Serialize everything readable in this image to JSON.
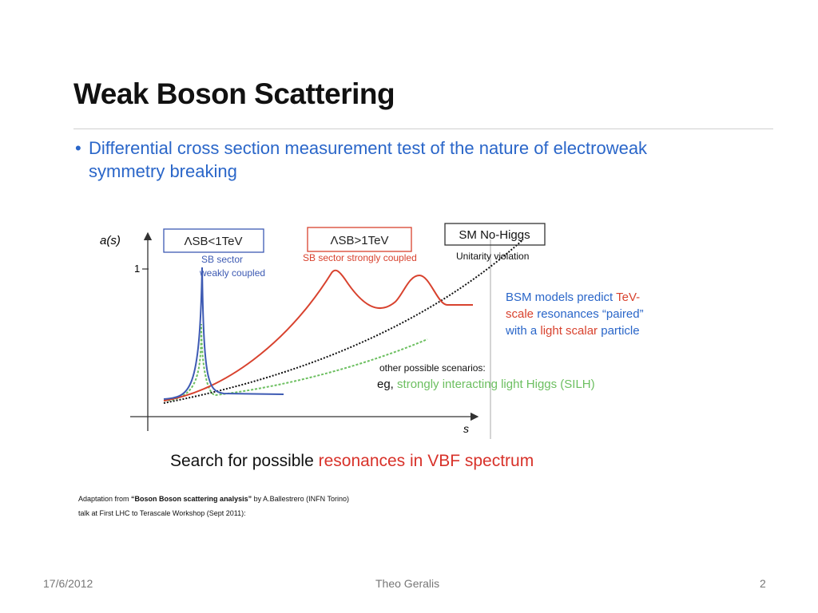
{
  "slide": {
    "title": "Weak Boson Scattering",
    "bullet_marker": "•",
    "bullet_line1": "Differential cross section measurement test of the nature of electroweak",
    "bullet_line2": "symmetry breaking"
  },
  "diagram": {
    "y_axis_label": "a(s)",
    "y_tick_label": "1",
    "x_axis_label": "s",
    "box_weak": "ΛSB<1TeV",
    "box_weak_sub_line1": "SB sector",
    "box_weak_sub_line2": "weakly coupled",
    "box_strong": "ΛSB>1TeV",
    "box_strong_sub": "SB sector strongly coupled",
    "box_smnohiggs": "SM No-Higgs",
    "unitarity_label": "Unitarity violation",
    "bsm_line1_part1": "BSM models predict ",
    "bsm_line1_part2": "TeV-",
    "bsm_line2_part1": "scale",
    "bsm_line2_part2": " resonances “paired”",
    "bsm_line3_part1": "with a ",
    "bsm_line3_part2": "light scalar",
    "bsm_line3_part3": " particle",
    "other_label": "other possible scenarios:",
    "eg_prefix": "eg, ",
    "eg_text": "strongly interacting light Higgs (SILH)",
    "colors": {
      "blue": "#3d5ab3",
      "red": "#d8422e",
      "green": "#6cbf60",
      "black": "#111111",
      "text_blue": "#2a66c9"
    }
  },
  "caption": {
    "part1": "Search for possible ",
    "part2": "resonances in VBF spectrum"
  },
  "source": {
    "line1_prefix": "Adaptation from ",
    "line1_bold": "“Boson Boson scattering analysis”",
    "line1_suffix": " by A.Ballestrero (INFN Torino)",
    "line2": "talk at First LHC to Terascale Workshop (Sept 2011):"
  },
  "footer": {
    "date": "17/6/2012",
    "author": "Theo Geralis",
    "page": "2"
  }
}
